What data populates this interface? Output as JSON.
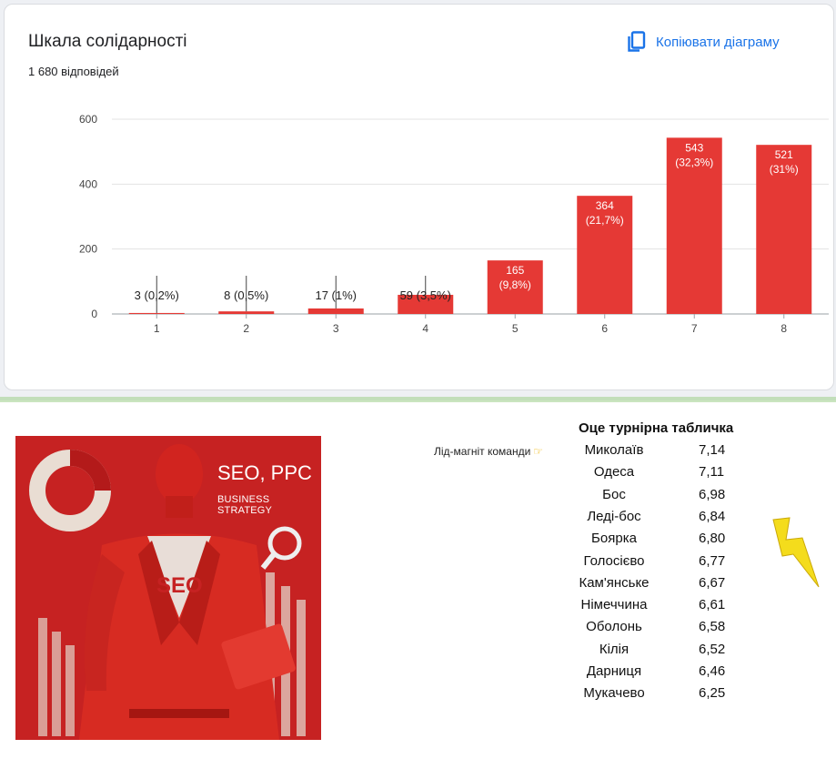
{
  "card": {
    "title": "Шкала солідарності",
    "responses": "1 680 відповідей",
    "copy_label": "Копіювати діаграму",
    "accent": "#1a73e8"
  },
  "chart_data": {
    "type": "bar",
    "title": "Шкала солідарності",
    "categories": [
      "1",
      "2",
      "3",
      "4",
      "5",
      "6",
      "7",
      "8"
    ],
    "values": [
      3,
      8,
      17,
      59,
      165,
      364,
      543,
      521
    ],
    "data_labels": [
      "3 (0,2%)",
      "8 (0,5%)",
      "17 (1%)",
      "59 (3,5%)",
      "165 (9,8%)",
      "364 (21,7%)",
      "543 (32,3%)",
      "521 (31%)"
    ],
    "yticks": [
      0,
      200,
      400,
      600
    ],
    "ylim": [
      0,
      600
    ],
    "grid": true,
    "bar_color": "#e53935"
  },
  "poster": {
    "line1": "SEO, PPC",
    "line2": "BUSINESS STRATEGY",
    "shirt_text": "SEO"
  },
  "ranking": {
    "title": "Оце турнірна табличка",
    "lead_note": "Лід-магніт команди",
    "lead_icon": "pointing-hand-icon",
    "rows": [
      {
        "city": "Миколаїв",
        "score": "7,14"
      },
      {
        "city": "Одеса",
        "score": "7,11"
      },
      {
        "city": "Бос",
        "score": "6,98"
      },
      {
        "city": "Леді-бос",
        "score": "6,84"
      },
      {
        "city": "Боярка",
        "score": "6,80"
      },
      {
        "city": "Голосієво",
        "score": "6,77"
      },
      {
        "city": "Кам'янське",
        "score": "6,67"
      },
      {
        "city": "Німеччина",
        "score": "6,61"
      },
      {
        "city": "Оболонь",
        "score": "6,58"
      },
      {
        "city": "Кілія",
        "score": "6,52"
      },
      {
        "city": "Дарниця",
        "score": "6,46"
      },
      {
        "city": "Мукачево",
        "score": "6,25"
      }
    ]
  }
}
